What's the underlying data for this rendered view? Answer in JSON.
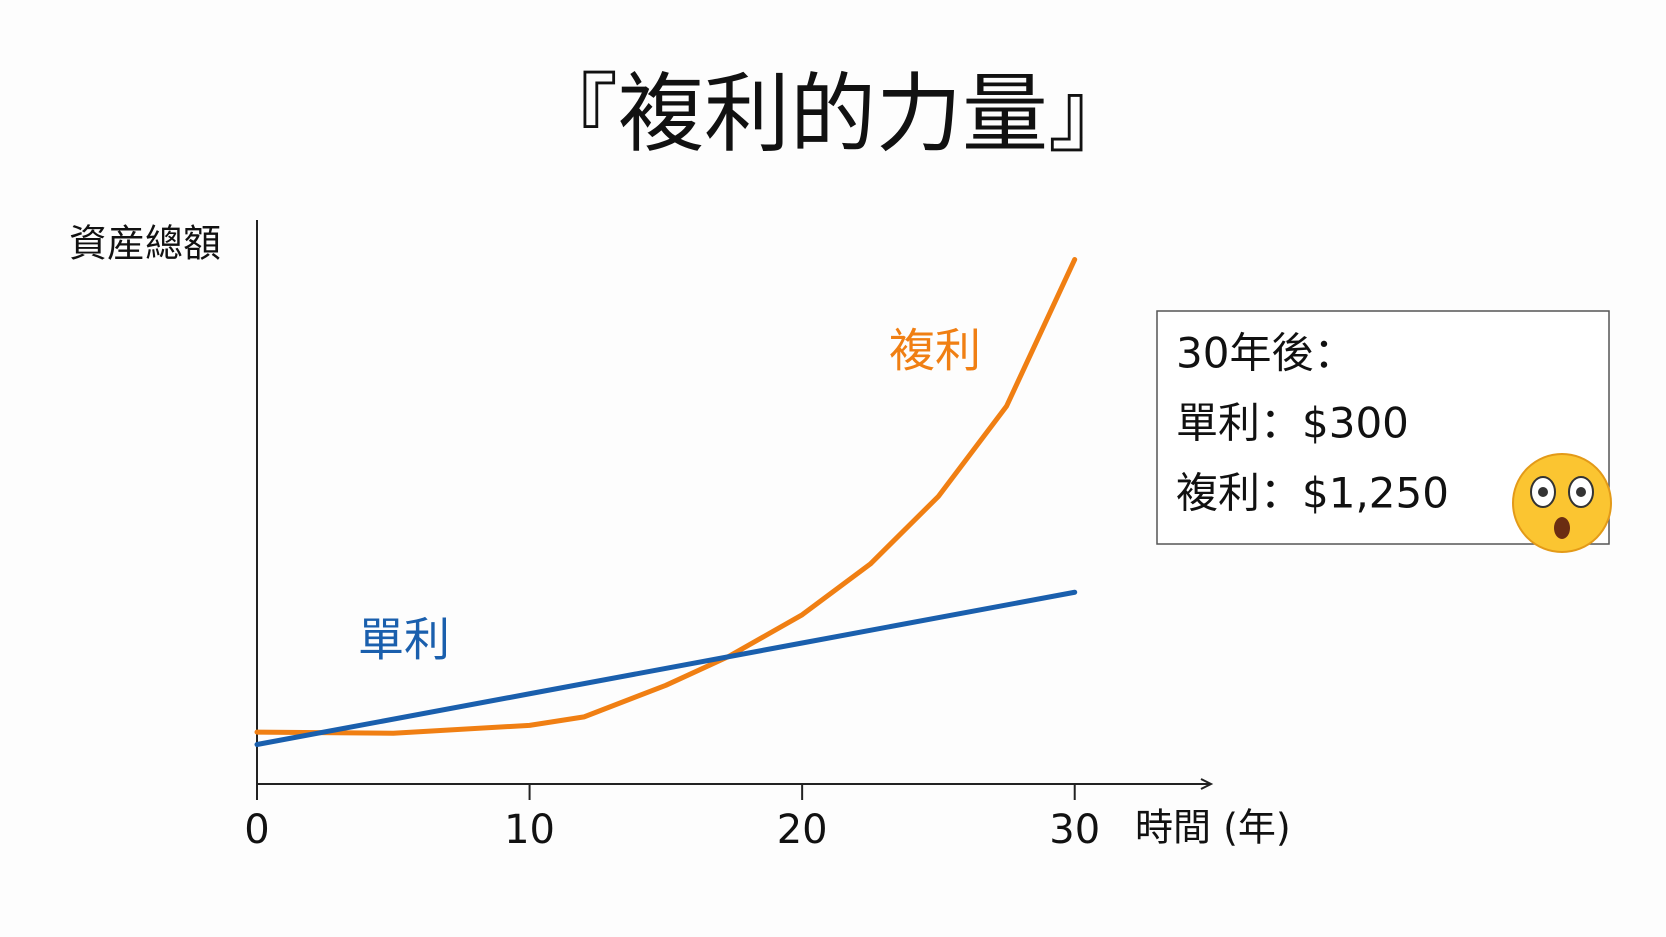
{
  "chart_data": {
    "type": "line",
    "title": "『複利的力量』",
    "y_label": "資産總額",
    "x_label": "時間 (年)",
    "xlim": [
      0,
      35
    ],
    "xticks": [
      0,
      10,
      20,
      30
    ],
    "ylim": [
      0,
      100
    ],
    "series": [
      {
        "name": "複利",
        "color": "#f07f13",
        "x": [
          0,
          5,
          10,
          12,
          15,
          17.3,
          20,
          22.5,
          25,
          27.5,
          30
        ],
        "values": [
          9.2,
          9,
          10.4,
          11.9,
          17.5,
          22.6,
          30,
          39,
          51,
          67,
          93
        ]
      },
      {
        "name": "單利",
        "color": "#1a5fad",
        "x": [
          0,
          10,
          20,
          30
        ],
        "values": [
          7,
          16,
          25,
          34
        ]
      }
    ],
    "annotation": {
      "lines": [
        "30年後：",
        "單利：$300",
        "複利：$1,250"
      ]
    }
  }
}
